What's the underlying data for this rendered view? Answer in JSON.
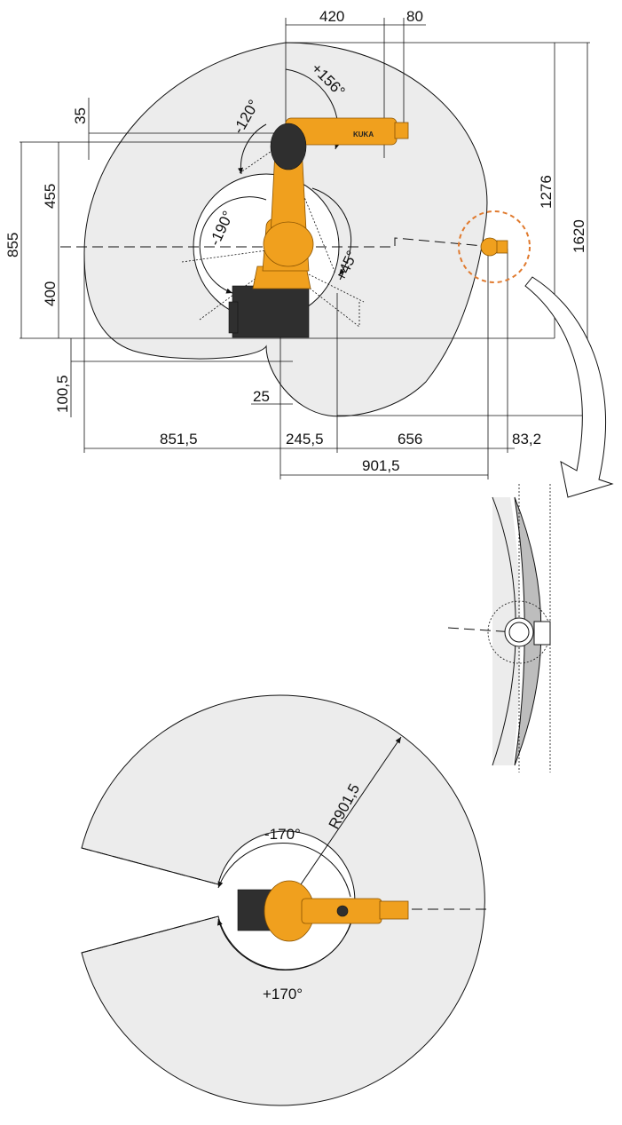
{
  "colors": {
    "envelope": "#ececec",
    "robot_orange": "#f0a01e",
    "robot_dark": "#2f2f2f",
    "highlight_circle": "#e07a2e",
    "line": "#111111"
  },
  "brand": "KUKA",
  "side_view": {
    "dims": {
      "top_420": "420",
      "top_80": "80",
      "left_35": "35",
      "left_455": "455",
      "left_855": "855",
      "left_400": "400",
      "left_100_5": "100,5",
      "right_1276": "1276",
      "right_1620": "1620",
      "bottom_25": "25",
      "bottom_851_5": "851,5",
      "bottom_245_5": "245,5",
      "bottom_656": "656",
      "bottom_83_2": "83,2",
      "bottom_901_5": "901,5"
    },
    "angles": {
      "a_plus156": "+156°",
      "a_minus120": "-120°",
      "a_minus190": "-190°",
      "a_plus45": "+45°"
    }
  },
  "top_view": {
    "radius": "R901,5",
    "a_minus170": "-170°",
    "a_plus170": "+170°"
  }
}
